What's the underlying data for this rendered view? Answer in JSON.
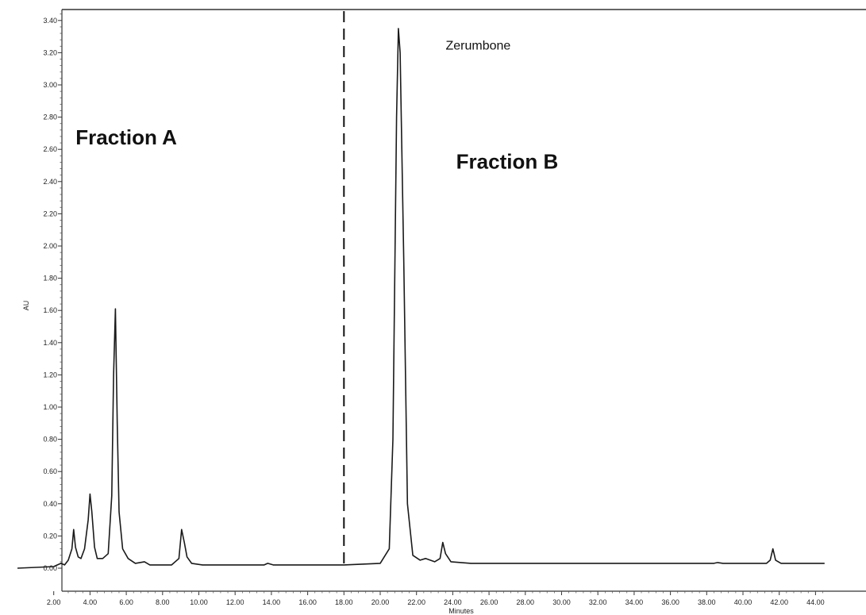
{
  "chart_data": {
    "type": "line",
    "title": "",
    "xlabel": "Minutes",
    "ylabel": "AU",
    "xlim": [
      0.0,
      44.5
    ],
    "ylim": [
      -0.15,
      3.5
    ],
    "x_ticks": [
      "2.00",
      "4.00",
      "6.00",
      "8.00",
      "10.00",
      "12.00",
      "14.00",
      "16.00",
      "18.00",
      "20.00",
      "22.00",
      "24.00",
      "26.00",
      "28.00",
      "30.00",
      "32.00",
      "34.00",
      "36.00",
      "38.00",
      "40.00",
      "42.00",
      "44.00"
    ],
    "y_ticks": [
      "0.00",
      "0.20",
      "0.40",
      "0.60",
      "0.80",
      "1.00",
      "1.20",
      "1.40",
      "1.60",
      "1.80",
      "2.00",
      "2.20",
      "2.40",
      "2.60",
      "2.80",
      "3.00",
      "3.20",
      "3.40"
    ],
    "grid": false,
    "series": [
      {
        "name": "",
        "x": [
          0.0,
          2.0,
          2.2,
          2.4,
          2.6,
          2.8,
          3.0,
          3.1,
          3.2,
          3.35,
          3.5,
          3.7,
          3.9,
          4.0,
          4.1,
          4.25,
          4.4,
          4.7,
          5.0,
          5.2,
          5.3,
          5.4,
          5.5,
          5.6,
          5.8,
          6.1,
          6.5,
          7.0,
          7.3,
          7.7,
          8.5,
          8.9,
          9.05,
          9.2,
          9.35,
          9.6,
          10.2,
          12.0,
          13.6,
          13.8,
          14.1,
          16.0,
          18.0,
          20.0,
          20.5,
          20.7,
          20.9,
          21.0,
          21.1,
          21.3,
          21.5,
          21.8,
          22.2,
          22.5,
          23.0,
          23.3,
          23.45,
          23.6,
          23.9,
          25.0,
          28.0,
          32.0,
          36.0,
          38.4,
          38.6,
          38.9,
          41.3,
          41.5,
          41.65,
          41.8,
          42.1,
          44.5
        ],
        "y": [
          0.0,
          0.01,
          0.02,
          0.03,
          0.02,
          0.05,
          0.12,
          0.24,
          0.13,
          0.07,
          0.06,
          0.12,
          0.3,
          0.46,
          0.35,
          0.13,
          0.06,
          0.06,
          0.09,
          0.45,
          1.2,
          1.61,
          0.9,
          0.35,
          0.12,
          0.06,
          0.03,
          0.04,
          0.02,
          0.02,
          0.02,
          0.06,
          0.24,
          0.16,
          0.07,
          0.03,
          0.02,
          0.02,
          0.02,
          0.03,
          0.02,
          0.02,
          0.02,
          0.03,
          0.12,
          0.8,
          2.8,
          3.35,
          3.2,
          1.9,
          0.4,
          0.08,
          0.05,
          0.06,
          0.04,
          0.06,
          0.16,
          0.09,
          0.04,
          0.03,
          0.03,
          0.03,
          0.03,
          0.03,
          0.035,
          0.03,
          0.03,
          0.05,
          0.12,
          0.05,
          0.03,
          0.03
        ]
      }
    ],
    "divider_x": 18.0,
    "annotations": [
      {
        "text": "Fraction A",
        "x": 6.0,
        "y": 2.63,
        "style": "big"
      },
      {
        "text": "Fraction B",
        "x": 27.0,
        "y": 2.48,
        "style": "big"
      },
      {
        "text": "Zerumbone",
        "x": 25.4,
        "y": 3.22,
        "style": "small"
      }
    ]
  }
}
